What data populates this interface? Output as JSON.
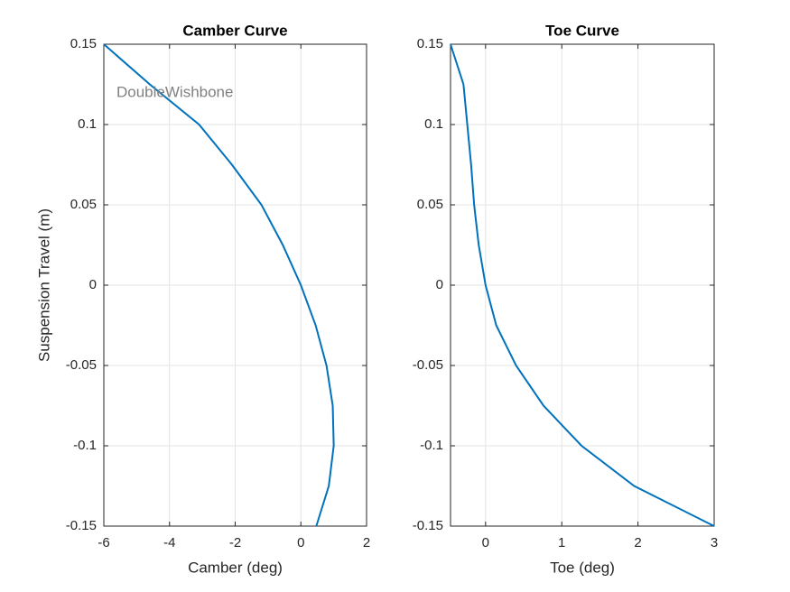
{
  "chart_data": [
    {
      "type": "line",
      "title": "Camber Curve",
      "x_label": "Camber (deg)",
      "y_label": "Suspension Travel (m)",
      "annotation": "DoubleWishbone",
      "color": "#0072bd",
      "grid": true,
      "x": [
        -6,
        -4.6,
        -3.1,
        -2.1,
        -1.2,
        -0.55,
        0,
        0.45,
        0.78,
        0.97,
        1.0,
        0.85,
        0.47
      ],
      "values": [
        0.15,
        0.125,
        0.1,
        0.075,
        0.05,
        0.025,
        0,
        -0.025,
        -0.05,
        -0.075,
        -0.1,
        -0.125,
        -0.15
      ],
      "xlim": [
        -6,
        2
      ],
      "xticks": [
        -6,
        -4,
        -2,
        0,
        2
      ],
      "ylim": [
        -0.15,
        0.15
      ],
      "yticks": [
        -0.15,
        -0.1,
        -0.05,
        0,
        0.05,
        0.1,
        0.15
      ]
    },
    {
      "type": "line",
      "title": "Toe Curve",
      "x_label": "Toe (deg)",
      "color": "#0072bd",
      "grid": true,
      "x": [
        -0.46,
        -0.29,
        -0.24,
        -0.19,
        -0.15,
        -0.09,
        0,
        0.14,
        0.4,
        0.76,
        1.26,
        1.95,
        3
      ],
      "values": [
        0.15,
        0.125,
        0.1,
        0.075,
        0.05,
        0.025,
        0,
        -0.025,
        -0.05,
        -0.075,
        -0.1,
        -0.125,
        -0.15
      ],
      "xlim": [
        -0.46,
        3
      ],
      "xticks": [
        0,
        1,
        2,
        3
      ],
      "ylim": [
        -0.15,
        0.15
      ],
      "yticks": [
        -0.15,
        -0.1,
        -0.05,
        0,
        0.05,
        0.1,
        0.15
      ]
    }
  ]
}
